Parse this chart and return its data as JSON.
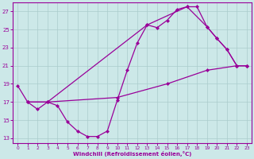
{
  "xlabel": "Windchill (Refroidissement éolien,°C)",
  "bg_color": "#cce8e8",
  "line_color": "#990099",
  "grid_color": "#aacccc",
  "xlim": [
    -0.5,
    23.5
  ],
  "ylim": [
    12.5,
    28.0
  ],
  "yticks": [
    13,
    15,
    17,
    19,
    21,
    23,
    25,
    27
  ],
  "xticks": [
    0,
    1,
    2,
    3,
    4,
    5,
    6,
    7,
    8,
    9,
    10,
    11,
    12,
    13,
    14,
    15,
    16,
    17,
    18,
    19,
    20,
    21,
    22,
    23
  ],
  "series1": [
    [
      0,
      18.8
    ],
    [
      1,
      17.0
    ],
    [
      2,
      16.2
    ],
    [
      3,
      17.0
    ],
    [
      4,
      16.6
    ],
    [
      5,
      14.8
    ],
    [
      6,
      13.8
    ],
    [
      7,
      13.2
    ],
    [
      8,
      13.2
    ],
    [
      9,
      13.8
    ],
    [
      10,
      17.2
    ],
    [
      11,
      20.5
    ],
    [
      12,
      23.5
    ],
    [
      13,
      25.5
    ],
    [
      14,
      25.2
    ],
    [
      15,
      26.0
    ],
    [
      16,
      27.2
    ],
    [
      17,
      27.5
    ],
    [
      18,
      27.5
    ],
    [
      19,
      25.3
    ],
    [
      20,
      24.0
    ],
    [
      21,
      22.8
    ],
    [
      22,
      21.0
    ],
    [
      23,
      21.0
    ]
  ],
  "series2": [
    [
      1,
      17.0
    ],
    [
      3,
      17.0
    ],
    [
      10,
      17.5
    ],
    [
      15,
      19.0
    ],
    [
      19,
      20.5
    ],
    [
      22,
      21.0
    ],
    [
      23,
      21.0
    ]
  ],
  "series3": [
    [
      1,
      17.0
    ],
    [
      3,
      17.0
    ],
    [
      13,
      25.5
    ],
    [
      17,
      27.5
    ],
    [
      19,
      25.3
    ],
    [
      20,
      24.0
    ],
    [
      21,
      22.8
    ],
    [
      22,
      21.0
    ],
    [
      23,
      21.0
    ]
  ]
}
